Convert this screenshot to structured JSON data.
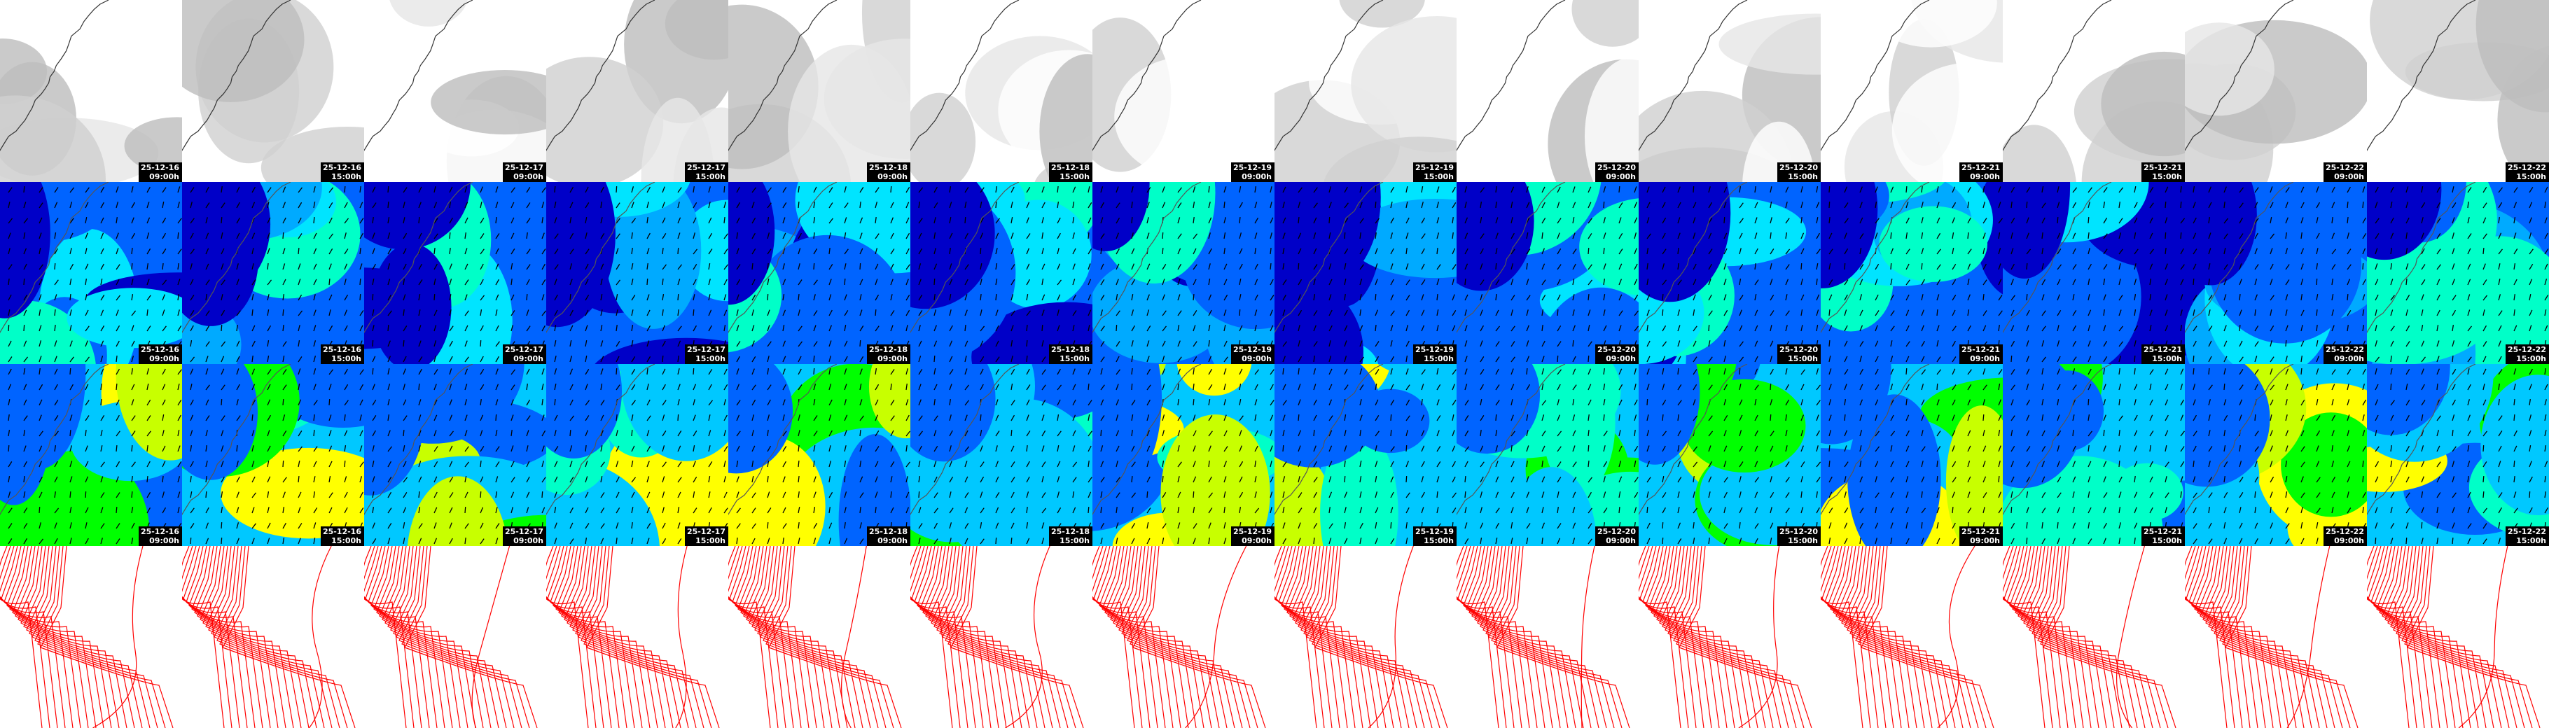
{
  "tiles": {
    "columns": [
      {
        "date": "25-12-16",
        "time": "09:00h"
      },
      {
        "date": "25-12-16",
        "time": "15:00h"
      },
      {
        "date": "25-12-17",
        "time": "09:00h"
      },
      {
        "date": "25-12-17",
        "time": "15:00h"
      },
      {
        "date": "25-12-18",
        "time": "09:00h"
      },
      {
        "date": "25-12-18",
        "time": "15:00h"
      },
      {
        "date": "25-12-19",
        "time": "09:00h"
      },
      {
        "date": "25-12-19",
        "time": "15:00h"
      },
      {
        "date": "25-12-20",
        "time": "09:00h"
      },
      {
        "date": "25-12-20",
        "time": "15:00h"
      },
      {
        "date": "25-12-21",
        "time": "09:00h"
      },
      {
        "date": "25-12-21",
        "time": "15:00h"
      },
      {
        "date": "25-12-22",
        "time": "09:00h"
      },
      {
        "date": "25-12-22",
        "time": "15:00h"
      }
    ]
  }
}
